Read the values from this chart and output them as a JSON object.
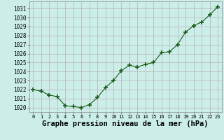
{
  "x": [
    0,
    1,
    2,
    3,
    4,
    5,
    6,
    7,
    8,
    9,
    10,
    11,
    12,
    13,
    14,
    15,
    16,
    17,
    18,
    19,
    20,
    21,
    22,
    23
  ],
  "y": [
    1022.0,
    1021.8,
    1021.4,
    1021.2,
    1020.2,
    1020.1,
    1020.0,
    1020.3,
    1021.1,
    1022.2,
    1023.0,
    1024.1,
    1024.7,
    1024.5,
    1024.8,
    1025.0,
    1026.1,
    1026.2,
    1027.0,
    1028.4,
    1029.1,
    1029.5,
    1030.3,
    1031.2
  ],
  "line_color": "#1a5c1a",
  "marker": "P",
  "marker_size": 3.5,
  "bg_color": "#cceee8",
  "grid_color": "#b8b0b8",
  "xlabel": "Graphe pression niveau de la mer (hPa)",
  "xlabel_fontsize": 7.5,
  "ytick_labels": [
    1020,
    1021,
    1022,
    1023,
    1024,
    1025,
    1026,
    1027,
    1028,
    1029,
    1030,
    1031
  ],
  "ylim": [
    1019.5,
    1031.8
  ],
  "xlim": [
    -0.5,
    23.5
  ],
  "xtick_labels": [
    "0",
    "1",
    "2",
    "3",
    "4",
    "5",
    "6",
    "7",
    "8",
    "9",
    "10",
    "11",
    "12",
    "13",
    "14",
    "15",
    "16",
    "17",
    "18",
    "19",
    "20",
    "21",
    "22",
    "23"
  ]
}
